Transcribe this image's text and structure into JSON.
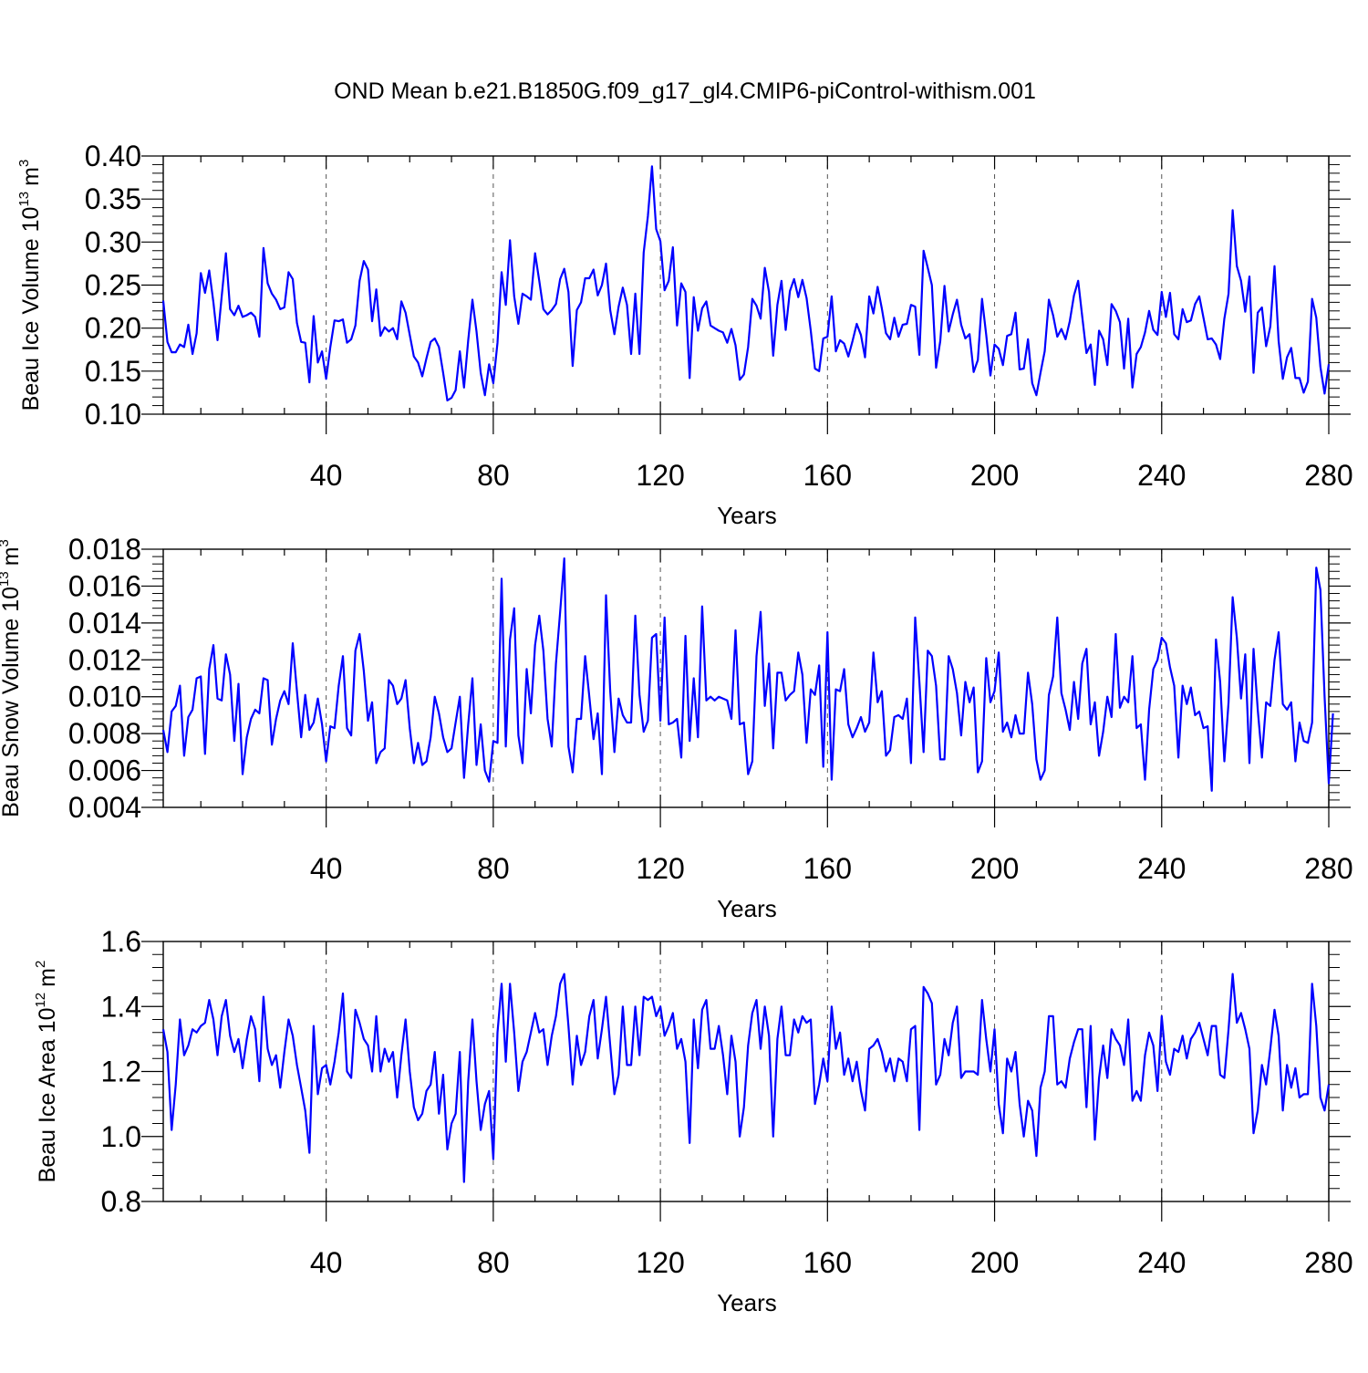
{
  "title": "OND Mean b.e21.B1850G.f09_g17_gl4.CMIP6-piControl-withism.001",
  "colors": {
    "line": "#0000ff",
    "axis": "#000000",
    "grid": "#555555"
  },
  "chart_data": [
    {
      "type": "line",
      "xlabel": "Years",
      "ylabel": "Beau Ice Volume 10",
      "ylabel_exp": "13",
      "ylabel_unit": "m",
      "ylabel_unit_exp": "3",
      "xlim": [
        1,
        280
      ],
      "ylim": [
        0.1,
        0.4
      ],
      "xticks": [
        "40",
        "80",
        "120",
        "160",
        "200",
        "240",
        "280"
      ],
      "yticks": [
        "0.10",
        "0.15",
        "0.20",
        "0.25",
        "0.30",
        "0.35",
        "0.40"
      ],
      "series": [
        {
          "x_start": 1,
          "values": [
            0.232,
            0.184,
            0.172,
            0.172,
            0.181,
            0.178,
            0.204,
            0.17,
            0.194,
            0.264,
            0.241,
            0.267,
            0.23,
            0.186,
            0.237,
            0.287,
            0.222,
            0.215,
            0.226,
            0.213,
            0.215,
            0.218,
            0.213,
            0.19,
            0.293,
            0.252,
            0.24,
            0.233,
            0.222,
            0.224,
            0.265,
            0.257,
            0.206,
            0.184,
            0.183,
            0.137,
            0.214,
            0.16,
            0.173,
            0.141,
            0.178,
            0.209,
            0.208,
            0.21,
            0.183,
            0.187,
            0.203,
            0.255,
            0.278,
            0.268,
            0.208,
            0.245,
            0.191,
            0.201,
            0.196,
            0.2,
            0.187,
            0.231,
            0.218,
            0.192,
            0.167,
            0.16,
            0.144,
            0.165,
            0.184,
            0.188,
            0.178,
            0.148,
            0.116,
            0.119,
            0.128,
            0.173,
            0.131,
            0.186,
            0.233,
            0.196,
            0.148,
            0.122,
            0.158,
            0.136,
            0.183,
            0.265,
            0.227,
            0.302,
            0.237,
            0.205,
            0.24,
            0.237,
            0.233,
            0.287,
            0.255,
            0.222,
            0.216,
            0.221,
            0.228,
            0.257,
            0.269,
            0.242,
            0.156,
            0.221,
            0.23,
            0.258,
            0.258,
            0.268,
            0.238,
            0.25,
            0.275,
            0.221,
            0.193,
            0.225,
            0.247,
            0.227,
            0.17,
            0.24,
            0.17,
            0.288,
            0.33,
            0.388,
            0.315,
            0.301,
            0.244,
            0.255,
            0.294,
            0.203,
            0.252,
            0.242,
            0.142,
            0.236,
            0.197,
            0.223,
            0.231,
            0.203,
            0.2,
            0.197,
            0.195,
            0.183,
            0.199,
            0.18,
            0.14,
            0.146,
            0.178,
            0.234,
            0.226,
            0.211,
            0.27,
            0.242,
            0.168,
            0.227,
            0.255,
            0.198,
            0.243,
            0.257,
            0.236,
            0.256,
            0.235,
            0.197,
            0.153,
            0.15,
            0.188,
            0.19,
            0.237,
            0.173,
            0.186,
            0.182,
            0.167,
            0.185,
            0.205,
            0.192,
            0.166,
            0.237,
            0.217,
            0.248,
            0.223,
            0.194,
            0.187,
            0.212,
            0.19,
            0.204,
            0.205,
            0.227,
            0.225,
            0.169,
            0.29,
            0.27,
            0.25,
            0.154,
            0.185,
            0.249,
            0.196,
            0.216,
            0.233,
            0.204,
            0.188,
            0.193,
            0.149,
            0.163,
            0.234,
            0.192,
            0.145,
            0.181,
            0.176,
            0.157,
            0.191,
            0.193,
            0.218,
            0.152,
            0.153,
            0.187,
            0.136,
            0.122,
            0.148,
            0.173,
            0.233,
            0.215,
            0.19,
            0.199,
            0.187,
            0.208,
            0.238,
            0.255,
            0.213,
            0.171,
            0.181,
            0.134,
            0.197,
            0.187,
            0.157,
            0.228,
            0.22,
            0.207,
            0.153,
            0.211,
            0.131,
            0.17,
            0.178,
            0.195,
            0.22,
            0.198,
            0.192,
            0.242,
            0.213,
            0.241,
            0.193,
            0.187,
            0.222,
            0.207,
            0.209,
            0.228,
            0.237,
            0.212,
            0.187,
            0.188,
            0.181,
            0.164,
            0.211,
            0.24,
            0.337,
            0.272,
            0.255,
            0.219,
            0.26,
            0.148,
            0.218,
            0.224,
            0.179,
            0.202,
            0.272,
            0.185,
            0.141,
            0.166,
            0.177,
            0.142,
            0.142,
            0.125,
            0.138,
            0.234,
            0.212,
            0.155,
            0.124,
            0.158
          ]
        }
      ]
    },
    {
      "type": "line",
      "xlabel": "Years",
      "ylabel": "Beau Snow Volume 10",
      "ylabel_exp": "13",
      "ylabel_unit": "m",
      "ylabel_unit_exp": "3",
      "xlim": [
        1,
        280
      ],
      "ylim": [
        0.004,
        0.018
      ],
      "xticks": [
        "40",
        "80",
        "120",
        "160",
        "200",
        "240",
        "280"
      ],
      "yticks": [
        "0.004",
        "0.006",
        "0.008",
        "0.010",
        "0.012",
        "0.014",
        "0.016",
        "0.018"
      ],
      "series": [
        {
          "x_start": 1,
          "values": [
            0.0082,
            0.007,
            0.0092,
            0.0095,
            0.0106,
            0.0068,
            0.0089,
            0.0093,
            0.011,
            0.0111,
            0.0069,
            0.0115,
            0.0128,
            0.0099,
            0.0098,
            0.0123,
            0.0112,
            0.0076,
            0.0107,
            0.0058,
            0.0078,
            0.0088,
            0.0093,
            0.0091,
            0.011,
            0.0109,
            0.0074,
            0.0088,
            0.0098,
            0.0103,
            0.0096,
            0.0129,
            0.0103,
            0.0078,
            0.0101,
            0.0082,
            0.0086,
            0.0099,
            0.0085,
            0.0065,
            0.0084,
            0.0083,
            0.0106,
            0.0122,
            0.0083,
            0.0079,
            0.0125,
            0.0134,
            0.0114,
            0.0087,
            0.0097,
            0.0064,
            0.007,
            0.0072,
            0.0109,
            0.0106,
            0.0096,
            0.0099,
            0.0109,
            0.0083,
            0.0064,
            0.0075,
            0.0063,
            0.0065,
            0.0078,
            0.01,
            0.0091,
            0.0078,
            0.007,
            0.0072,
            0.0086,
            0.01,
            0.0056,
            0.0085,
            0.011,
            0.0063,
            0.0085,
            0.006,
            0.0054,
            0.0076,
            0.0075,
            0.0164,
            0.0073,
            0.0131,
            0.0148,
            0.0079,
            0.0064,
            0.0115,
            0.0091,
            0.0128,
            0.0144,
            0.0125,
            0.0088,
            0.0073,
            0.0118,
            0.0146,
            0.0175,
            0.0073,
            0.0059,
            0.0088,
            0.0088,
            0.0122,
            0.01,
            0.0077,
            0.0091,
            0.0058,
            0.0155,
            0.0103,
            0.007,
            0.0099,
            0.009,
            0.0086,
            0.0086,
            0.0144,
            0.0101,
            0.0081,
            0.0087,
            0.0132,
            0.0134,
            0.0087,
            0.0143,
            0.0085,
            0.0086,
            0.0088,
            0.0067,
            0.0133,
            0.0076,
            0.011,
            0.0078,
            0.0149,
            0.0098,
            0.01,
            0.0098,
            0.01,
            0.0099,
            0.0098,
            0.0088,
            0.0136,
            0.0085,
            0.0086,
            0.0058,
            0.0065,
            0.0122,
            0.0146,
            0.0095,
            0.0118,
            0.0072,
            0.0113,
            0.0113,
            0.0098,
            0.0101,
            0.0103,
            0.0124,
            0.0112,
            0.0075,
            0.0104,
            0.0101,
            0.0117,
            0.0062,
            0.0135,
            0.0055,
            0.0104,
            0.0103,
            0.0115,
            0.0085,
            0.0078,
            0.0083,
            0.0089,
            0.0081,
            0.0086,
            0.0124,
            0.0097,
            0.0103,
            0.0068,
            0.0071,
            0.0089,
            0.009,
            0.0088,
            0.0099,
            0.0064,
            0.0143,
            0.0108,
            0.007,
            0.0125,
            0.0122,
            0.0106,
            0.0066,
            0.0066,
            0.0122,
            0.0115,
            0.0102,
            0.0079,
            0.0108,
            0.0097,
            0.0105,
            0.0059,
            0.0065,
            0.0121,
            0.0097,
            0.0103,
            0.0124,
            0.0081,
            0.0086,
            0.0078,
            0.009,
            0.008,
            0.008,
            0.0113,
            0.0096,
            0.0066,
            0.0055,
            0.006,
            0.0101,
            0.0111,
            0.0143,
            0.0102,
            0.0093,
            0.0082,
            0.0108,
            0.0088,
            0.0118,
            0.0126,
            0.0085,
            0.0097,
            0.0068,
            0.0081,
            0.01,
            0.0089,
            0.0134,
            0.0094,
            0.01,
            0.0097,
            0.0122,
            0.0083,
            0.0085,
            0.0055,
            0.0093,
            0.0115,
            0.012,
            0.0132,
            0.0129,
            0.0116,
            0.0106,
            0.0067,
            0.0106,
            0.0096,
            0.0105,
            0.009,
            0.0092,
            0.0083,
            0.0084,
            0.0049,
            0.0131,
            0.0108,
            0.0065,
            0.0097,
            0.0154,
            0.0132,
            0.0099,
            0.0123,
            0.0064,
            0.0126,
            0.0093,
            0.0067,
            0.0097,
            0.0095,
            0.012,
            0.0135,
            0.0096,
            0.0093,
            0.0097,
            0.0065,
            0.0086,
            0.0076,
            0.0075,
            0.0086,
            0.017,
            0.0158,
            0.01,
            0.0053,
            0.0091
          ]
        }
      ]
    },
    {
      "type": "line",
      "xlabel": "Years",
      "ylabel": "Beau Ice Area 10",
      "ylabel_exp": "12",
      "ylabel_unit": "m",
      "ylabel_unit_exp": "2",
      "xlim": [
        1,
        280
      ],
      "ylim": [
        0.8,
        1.6
      ],
      "xticks": [
        "40",
        "80",
        "120",
        "160",
        "200",
        "240",
        "280"
      ],
      "yticks": [
        "0.8",
        "1.0",
        "1.2",
        "1.4",
        "1.6"
      ],
      "series": [
        {
          "x_start": 1,
          "values": [
            1.33,
            1.26,
            1.02,
            1.16,
            1.36,
            1.25,
            1.28,
            1.33,
            1.32,
            1.34,
            1.35,
            1.42,
            1.36,
            1.25,
            1.37,
            1.42,
            1.31,
            1.26,
            1.3,
            1.21,
            1.3,
            1.37,
            1.33,
            1.17,
            1.43,
            1.27,
            1.22,
            1.25,
            1.15,
            1.26,
            1.36,
            1.31,
            1.22,
            1.15,
            1.08,
            0.95,
            1.34,
            1.13,
            1.21,
            1.22,
            1.16,
            1.23,
            1.32,
            1.44,
            1.2,
            1.18,
            1.39,
            1.35,
            1.3,
            1.28,
            1.2,
            1.37,
            1.2,
            1.27,
            1.23,
            1.26,
            1.12,
            1.25,
            1.36,
            1.2,
            1.09,
            1.05,
            1.07,
            1.14,
            1.16,
            1.26,
            1.07,
            1.19,
            0.96,
            1.04,
            1.07,
            1.26,
            0.86,
            1.17,
            1.36,
            1.17,
            1.02,
            1.1,
            1.14,
            0.93,
            1.32,
            1.47,
            1.23,
            1.47,
            1.32,
            1.14,
            1.23,
            1.26,
            1.32,
            1.38,
            1.32,
            1.33,
            1.22,
            1.31,
            1.37,
            1.47,
            1.5,
            1.34,
            1.16,
            1.31,
            1.22,
            1.26,
            1.37,
            1.42,
            1.24,
            1.33,
            1.43,
            1.28,
            1.13,
            1.19,
            1.4,
            1.22,
            1.22,
            1.4,
            1.25,
            1.43,
            1.42,
            1.43,
            1.37,
            1.4,
            1.31,
            1.34,
            1.38,
            1.27,
            1.3,
            1.23,
            0.98,
            1.36,
            1.21,
            1.39,
            1.42,
            1.27,
            1.27,
            1.34,
            1.25,
            1.13,
            1.31,
            1.23,
            1.0,
            1.09,
            1.28,
            1.38,
            1.42,
            1.27,
            1.4,
            1.31,
            1.0,
            1.3,
            1.4,
            1.25,
            1.25,
            1.36,
            1.32,
            1.37,
            1.35,
            1.36,
            1.1,
            1.16,
            1.24,
            1.17,
            1.4,
            1.27,
            1.32,
            1.19,
            1.24,
            1.17,
            1.23,
            1.14,
            1.08,
            1.27,
            1.28,
            1.3,
            1.26,
            1.2,
            1.24,
            1.17,
            1.24,
            1.23,
            1.17,
            1.33,
            1.34,
            1.02,
            1.46,
            1.44,
            1.41,
            1.16,
            1.19,
            1.3,
            1.25,
            1.35,
            1.4,
            1.18,
            1.2,
            1.2,
            1.2,
            1.19,
            1.42,
            1.3,
            1.2,
            1.33,
            1.1,
            1.01,
            1.24,
            1.2,
            1.26,
            1.1,
            1.0,
            1.11,
            1.08,
            0.94,
            1.15,
            1.2,
            1.37,
            1.37,
            1.16,
            1.17,
            1.15,
            1.24,
            1.29,
            1.33,
            1.33,
            1.09,
            1.34,
            0.99,
            1.18,
            1.28,
            1.18,
            1.33,
            1.3,
            1.28,
            1.22,
            1.36,
            1.11,
            1.14,
            1.11,
            1.25,
            1.32,
            1.28,
            1.14,
            1.37,
            1.23,
            1.19,
            1.27,
            1.26,
            1.31,
            1.24,
            1.3,
            1.32,
            1.35,
            1.3,
            1.25,
            1.34,
            1.34,
            1.19,
            1.18,
            1.33,
            1.5,
            1.35,
            1.38,
            1.33,
            1.27,
            1.01,
            1.08,
            1.22,
            1.16,
            1.27,
            1.39,
            1.31,
            1.08,
            1.22,
            1.15,
            1.21,
            1.12,
            1.13,
            1.13,
            1.47,
            1.34,
            1.12,
            1.08,
            1.16
          ]
        }
      ]
    }
  ]
}
